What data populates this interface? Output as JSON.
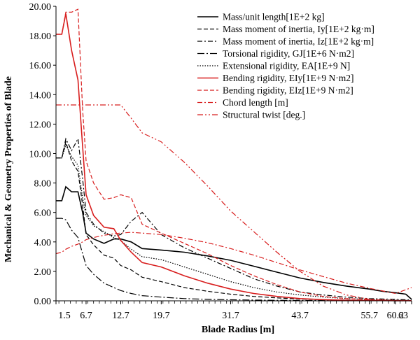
{
  "chart_data": {
    "type": "line",
    "title": "",
    "xlabel": "Blade Radius [m]",
    "ylabel": "Mechanical & Geometry Properties of Blade",
    "ylim": [
      0,
      20
    ],
    "y_ticks": [
      "0.00",
      "2.00",
      "4.00",
      "6.00",
      "8.00",
      "10.00",
      "12.00",
      "14.00",
      "16.00",
      "18.00",
      "20.00"
    ],
    "xlim": [
      1.5,
      63
    ],
    "x_ticks": [
      "1.5",
      "6.7",
      "12.7",
      "19.7",
      "31.7",
      "43.7",
      "55.7",
      "60.2",
      "63"
    ],
    "x_tick_values": [
      1.5,
      6.7,
      12.7,
      19.7,
      31.7,
      43.7,
      55.7,
      60.2,
      63
    ],
    "grid": false,
    "legend_position": "top-right",
    "series": [
      {
        "name": "Mass/unit length[1E+2 kg]",
        "style": "solid",
        "color": "#000000",
        "x": [
          1.5,
          2.5,
          3.2,
          4.2,
          5.3,
          6.1,
          6.7,
          8.0,
          9.8,
          11.5,
          12.7,
          14.5,
          16.4,
          19.7,
          23.7,
          27.7,
          31.7,
          35.7,
          39.7,
          43.7,
          47.7,
          51.7,
          55.7,
          57.9,
          60.2,
          62.0,
          63.0
        ],
        "values": [
          6.8,
          6.8,
          7.75,
          7.4,
          7.4,
          6.0,
          4.6,
          4.2,
          3.9,
          4.2,
          4.2,
          4.0,
          3.55,
          3.45,
          3.3,
          3.05,
          2.75,
          2.35,
          1.95,
          1.55,
          1.25,
          1.0,
          0.8,
          0.65,
          0.55,
          0.45,
          0.1
        ]
      },
      {
        "name": "Mass moment of inertia, Iy[1E+2 kg·m]",
        "style": "dashed",
        "color": "#000000",
        "x": [
          1.5,
          2.5,
          3.2,
          4.2,
          5.3,
          6.1,
          6.7,
          8.0,
          9.8,
          11.5,
          12.7,
          14.5,
          16.4,
          19.7,
          23.7,
          27.7,
          31.7,
          35.7,
          39.7,
          43.7,
          47.7,
          51.7,
          55.7,
          60.2,
          63.0
        ],
        "values": [
          9.7,
          9.7,
          10.8,
          9.5,
          8.8,
          6.5,
          4.5,
          3.8,
          3.1,
          2.9,
          2.4,
          2.1,
          1.6,
          1.3,
          0.9,
          0.65,
          0.45,
          0.3,
          0.2,
          0.12,
          0.08,
          0.05,
          0.03,
          0.02,
          0.01
        ]
      },
      {
        "name": "Mass moment of inertia, Iz[1E+2 kg·m]",
        "style": "dashdot",
        "color": "#000000",
        "x": [
          1.5,
          2.5,
          3.2,
          4.2,
          5.3,
          6.1,
          6.7,
          8.0,
          9.8,
          11.5,
          12.7,
          14.5,
          16.4,
          19.7,
          23.7,
          27.7,
          31.7,
          35.7,
          39.7,
          43.7,
          47.7,
          51.7,
          55.7,
          60.2,
          63.0
        ],
        "values": [
          9.7,
          9.7,
          11.0,
          10.2,
          11.0,
          8.3,
          6.0,
          5.2,
          4.6,
          4.4,
          4.5,
          5.4,
          6.0,
          4.5,
          3.6,
          2.9,
          2.2,
          1.5,
          1.0,
          0.6,
          0.4,
          0.25,
          0.15,
          0.1,
          0.05
        ]
      },
      {
        "name": "Torsional rigidity, GJ[1E+6 N·m2]",
        "style": "longdashdot",
        "color": "#000000",
        "x": [
          1.5,
          2.5,
          3.2,
          4.2,
          5.3,
          6.1,
          6.7,
          8.0,
          9.8,
          11.5,
          12.7,
          14.5,
          16.4,
          19.7,
          23.7,
          27.7,
          31.7,
          35.7,
          39.7,
          43.7,
          47.7,
          51.7,
          55.7,
          60.2,
          63.0
        ],
        "values": [
          5.6,
          5.6,
          5.5,
          4.8,
          4.3,
          3.2,
          2.4,
          1.8,
          1.2,
          0.9,
          0.7,
          0.5,
          0.35,
          0.25,
          0.15,
          0.1,
          0.07,
          0.05,
          0.04,
          0.03,
          0.02,
          0.02,
          0.01,
          0.01,
          0.01
        ]
      },
      {
        "name": "Extensional rigidity, EA[1E+9 N]",
        "style": "dotted",
        "color": "#000000",
        "x": [
          1.5,
          2.5,
          3.2,
          4.2,
          5.3,
          6.1,
          6.7,
          8.0,
          9.8,
          11.5,
          12.7,
          14.5,
          16.4,
          19.7,
          23.7,
          27.7,
          31.7,
          35.7,
          39.7,
          43.7,
          47.7,
          51.7,
          55.7,
          60.2,
          63.0
        ],
        "values": [
          9.7,
          9.7,
          10.6,
          9.8,
          9.2,
          7.0,
          5.8,
          5.1,
          4.7,
          4.3,
          4.1,
          3.5,
          3.0,
          2.8,
          2.3,
          1.8,
          1.3,
          0.9,
          0.6,
          0.4,
          0.25,
          0.15,
          0.1,
          0.05,
          0.02
        ]
      },
      {
        "name": "Bending rigidity, EIy[1E+9 N·m2]",
        "style": "solid",
        "color": "#d81e1e",
        "x": [
          1.5,
          2.5,
          3.2,
          4.2,
          5.3,
          6.1,
          6.7,
          8.0,
          9.8,
          11.5,
          12.7,
          14.5,
          16.4,
          19.7,
          23.7,
          27.7,
          31.7,
          35.7,
          39.7,
          43.7,
          47.7,
          51.7,
          55.7,
          60.2,
          63.0
        ],
        "values": [
          18.1,
          18.1,
          19.5,
          17.0,
          15.0,
          10.5,
          7.2,
          5.8,
          5.0,
          4.9,
          4.1,
          3.3,
          2.6,
          2.3,
          1.7,
          1.2,
          0.8,
          0.5,
          0.3,
          0.15,
          0.08,
          0.04,
          0.02,
          0.01,
          0.01
        ]
      },
      {
        "name": "Bending rigidity, EIz[1E+9 N·m2]",
        "style": "dashed",
        "color": "#d81e1e",
        "x": [
          1.5,
          2.5,
          3.2,
          4.2,
          5.3,
          6.1,
          6.7,
          8.0,
          9.8,
          11.5,
          12.7,
          14.5,
          16.4,
          19.7,
          23.7,
          27.7,
          31.7,
          35.7,
          39.7,
          43.7,
          47.7,
          51.7,
          55.7,
          60.2,
          63.0
        ],
        "values": [
          18.1,
          18.1,
          19.6,
          19.6,
          19.8,
          13.0,
          9.5,
          8.0,
          6.9,
          7.0,
          7.2,
          7.0,
          5.2,
          4.6,
          3.9,
          3.2,
          2.4,
          1.7,
          1.1,
          0.6,
          0.3,
          0.15,
          0.08,
          0.03,
          0.02
        ]
      },
      {
        "name": "Chord length [m]",
        "style": "dashdot",
        "color": "#d81e1e",
        "x": [
          1.5,
          2.5,
          3.2,
          4.2,
          5.3,
          6.1,
          6.7,
          8.0,
          9.8,
          11.5,
          12.7,
          14.5,
          16.4,
          19.7,
          23.7,
          27.7,
          31.7,
          35.7,
          39.7,
          43.7,
          47.7,
          51.7,
          55.7,
          60.2,
          63.0
        ],
        "values": [
          3.2,
          3.3,
          3.5,
          3.7,
          3.85,
          4.0,
          4.15,
          4.3,
          4.45,
          4.55,
          4.6,
          4.65,
          4.6,
          4.5,
          4.25,
          3.95,
          3.55,
          3.1,
          2.6,
          2.1,
          1.65,
          1.2,
          0.85,
          0.5,
          0.9
        ]
      },
      {
        "name": "Structural twist [deg.]",
        "style": "dashdotdot",
        "color": "#d81e1e",
        "x": [
          1.5,
          2.5,
          3.2,
          4.2,
          5.3,
          6.1,
          6.7,
          8.0,
          9.8,
          11.5,
          12.7,
          14.5,
          16.4,
          19.7,
          23.7,
          27.7,
          31.7,
          35.7,
          39.7,
          43.7,
          47.7,
          51.7,
          55.7,
          60.2,
          63.0
        ],
        "values": [
          13.3,
          13.3,
          13.3,
          13.3,
          13.3,
          13.3,
          13.3,
          13.3,
          13.3,
          13.3,
          13.3,
          12.4,
          11.4,
          10.8,
          9.4,
          7.8,
          6.1,
          4.7,
          3.3,
          2.0,
          1.0,
          0.4,
          0.1,
          0.0,
          0.0
        ]
      }
    ]
  }
}
